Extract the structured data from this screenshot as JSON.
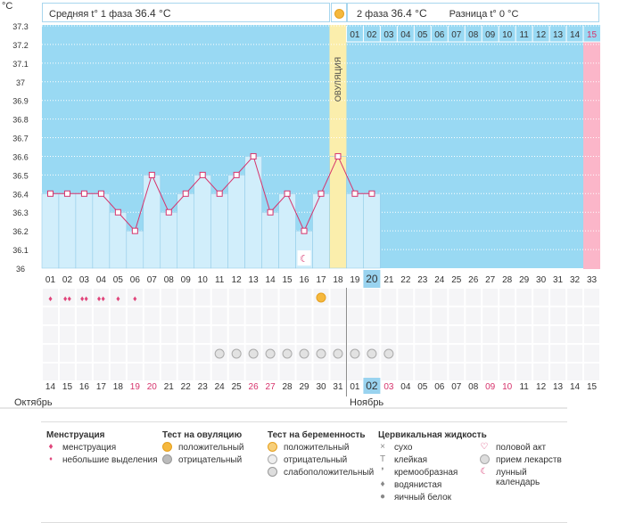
{
  "header": {
    "unit": "°C",
    "phase1_label": "Средняя t° 1 фаза",
    "phase1_value": "36.4 °C",
    "phase2_label": "2 фаза",
    "phase2_value": "36.4 °C",
    "diff_label": "Разница t° 0 °C"
  },
  "colors": {
    "chart_bg": "#99d9f3",
    "bar_fill": "#d1eefb",
    "line": "#d6336c",
    "ovulation_band": "#fbeeac",
    "last_day_band": "#fbb6c9",
    "today_highlight": "#99d3ef",
    "red_day": "#d6336c"
  },
  "chart_data": {
    "type": "line",
    "ylim": [
      36.0,
      37.3
    ],
    "yticks": [
      "37.3",
      "37.2",
      "37.1",
      "37",
      "36.9",
      "36.8",
      "36.7",
      "36.6",
      "36.5",
      "36.4",
      "36.3",
      "36.2",
      "36.1",
      "36"
    ],
    "cycle_days": [
      "01",
      "02",
      "03",
      "04",
      "05",
      "06",
      "07",
      "08",
      "09",
      "10",
      "11",
      "12",
      "13",
      "14",
      "15",
      "16",
      "17",
      "18",
      "19",
      "20",
      "21",
      "22",
      "23",
      "24",
      "25",
      "26",
      "27",
      "28",
      "29",
      "30",
      "31",
      "32",
      "33"
    ],
    "temperatures": [
      36.4,
      36.4,
      36.4,
      36.4,
      36.3,
      36.2,
      36.5,
      36.3,
      36.4,
      36.5,
      36.4,
      36.5,
      36.6,
      36.3,
      36.4,
      36.2,
      36.4,
      36.6,
      36.4,
      36.4
    ],
    "ovulation_label": "ОВУЛЯЦИЯ",
    "ovulation_day_index": 17,
    "today_day_index": 19,
    "luteal_days": [
      "01",
      "02",
      "03",
      "04",
      "05",
      "06",
      "07",
      "08",
      "09",
      "10",
      "11",
      "12",
      "13",
      "14",
      "15"
    ],
    "dates": [
      "14",
      "15",
      "16",
      "17",
      "18",
      "19",
      "20",
      "21",
      "22",
      "23",
      "24",
      "25",
      "26",
      "27",
      "28",
      "29",
      "30",
      "31",
      "01",
      "02",
      "03",
      "04",
      "05",
      "06",
      "07",
      "08",
      "09",
      "10",
      "11",
      "12",
      "13",
      "14",
      "15"
    ],
    "red_date_indices": [
      5,
      6,
      12,
      13,
      20,
      26,
      27
    ],
    "month_left": "Октябрь",
    "month_right": "Ноябрь",
    "menstruation": [
      1,
      2,
      2,
      2,
      1,
      1,
      0,
      0,
      0,
      0,
      0,
      0,
      0,
      0,
      0,
      0,
      0,
      0,
      0,
      0,
      0,
      0,
      0,
      0,
      0,
      0,
      0,
      0,
      0,
      0,
      0,
      0,
      0
    ],
    "ovulation_test_positive_index": 16,
    "pill_indices": [
      10,
      11,
      12,
      13,
      14,
      15,
      16,
      17,
      18,
      19,
      20
    ],
    "lunar_index": 15
  },
  "legend": {
    "menstruation": {
      "title": "Менструация",
      "items": [
        "менструация",
        "небольшие выделения"
      ]
    },
    "ovulation_test": {
      "title": "Тест на овуляцию",
      "items": [
        "положительный",
        "отрицательный"
      ]
    },
    "pregnancy_test": {
      "title": "Тест на беременность",
      "items": [
        "положительный",
        "отрицательный",
        "слабоположительный"
      ]
    },
    "cervical": {
      "title": "Цервикальная жидкость",
      "items": [
        "сухо",
        "клейкая",
        "кремообразная",
        "водянистая",
        "яичный белок"
      ]
    },
    "other": {
      "items": [
        "половой акт",
        "прием лекарств",
        "лунный календарь"
      ]
    }
  }
}
